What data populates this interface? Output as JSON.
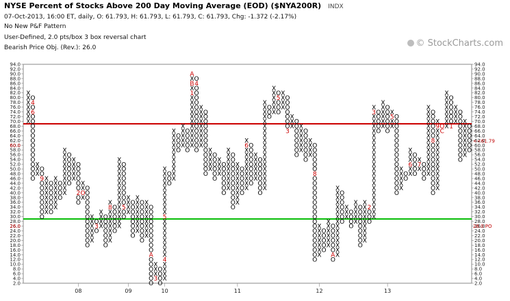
{
  "header": {
    "title": "NYSE Percent of Stocks Above 200 Day Moving Average (EOD) ($NYA200R)",
    "symbol_note": "INDX",
    "info_lines": [
      "07-Oct-2013, 16:00 ET, daily, O: 61.793, H: 61.793, L: 61.793, C: 61.793, Chg: -1.372 (-2.17%)",
      "No New P&F Pattern",
      "User-Defined, 2.0 pts/box 3 box reversal chart",
      "Bearish Price Obj. (Rev.): 26.0"
    ]
  },
  "watermark": {
    "text": "© StockCharts.com",
    "icon": "stockcharts-logo-icon"
  },
  "chart_data": {
    "type": "point-and-figure",
    "box_size": 2.0,
    "reversal": 3,
    "ylim": [
      2,
      94
    ],
    "y_ticks": [
      "94.0",
      "92.0",
      "90.0",
      "88.0",
      "86.0",
      "84.0",
      "82.0",
      "80.0",
      "78.0",
      "76.0",
      "74.0",
      "72.0",
      "70.0",
      "68.0",
      "66.0",
      "64.0",
      "62.0",
      "60.0",
      "58.0",
      "56.0",
      "54.0",
      "52.0",
      "50.0",
      "48.0",
      "46.0",
      "44.0",
      "42.0",
      "40.0",
      "38.0",
      "36.0",
      "34.0",
      "32.0",
      "30.0",
      "28.0",
      "26.0",
      "24.0",
      "22.0",
      "20.0",
      "18.0",
      "16.0",
      "14.0",
      "12.0",
      "10.0",
      "8.0",
      "6.0",
      "4.0",
      "2.0"
    ],
    "x_labels": [
      {
        "label": "08",
        "column": 11
      },
      {
        "label": "09",
        "column": 22
      },
      {
        "label": "10",
        "column": 30
      },
      {
        "label": "11",
        "column": 46
      },
      {
        "label": "12",
        "column": 64
      },
      {
        "label": "13",
        "column": 79
      }
    ],
    "reference_lines": [
      {
        "value": 69,
        "color": "#cc0000",
        "name": "upper reference"
      },
      {
        "value": 29,
        "color": "#00bb00",
        "name": "lower reference"
      }
    ],
    "right_markers": [
      {
        "value": 61.79,
        "text": "<<61.79",
        "color": "#c00000"
      },
      {
        "value": 26.0,
        "text": "26.0 PO",
        "color": "#c00000"
      }
    ],
    "left_markers": [
      {
        "value": 60.0,
        "text": "60.0",
        "color": "#c00000"
      },
      {
        "value": 26.0,
        "text": "26.0",
        "color": "#c00000"
      }
    ],
    "columns": [
      {
        "t": "X",
        "lo": 70,
        "hi": 82
      },
      {
        "t": "O",
        "lo": 46,
        "hi": 80
      },
      {
        "t": "X",
        "lo": 48,
        "hi": 52
      },
      {
        "t": "O",
        "lo": 30,
        "hi": 50
      },
      {
        "t": "X",
        "lo": 32,
        "hi": 46
      },
      {
        "t": "O",
        "lo": 32,
        "hi": 44
      },
      {
        "t": "X",
        "lo": 34,
        "hi": 46
      },
      {
        "t": "O",
        "lo": 38,
        "hi": 44
      },
      {
        "t": "X",
        "lo": 40,
        "hi": 58
      },
      {
        "t": "O",
        "lo": 44,
        "hi": 56
      },
      {
        "t": "X",
        "lo": 46,
        "hi": 54
      },
      {
        "t": "O",
        "lo": 36,
        "hi": 52
      },
      {
        "t": "X",
        "lo": 38,
        "hi": 44
      },
      {
        "t": "O",
        "lo": 18,
        "hi": 42
      },
      {
        "t": "X",
        "lo": 20,
        "hi": 30
      },
      {
        "t": "O",
        "lo": 24,
        "hi": 28
      },
      {
        "t": "X",
        "lo": 26,
        "hi": 32
      },
      {
        "t": "O",
        "lo": 18,
        "hi": 30
      },
      {
        "t": "X",
        "lo": 20,
        "hi": 36
      },
      {
        "t": "O",
        "lo": 24,
        "hi": 34
      },
      {
        "t": "X",
        "lo": 26,
        "hi": 54
      },
      {
        "t": "O",
        "lo": 30,
        "hi": 52
      },
      {
        "t": "X",
        "lo": 32,
        "hi": 38
      },
      {
        "t": "O",
        "lo": 22,
        "hi": 36
      },
      {
        "t": "X",
        "lo": 24,
        "hi": 38
      },
      {
        "t": "O",
        "lo": 20,
        "hi": 36
      },
      {
        "t": "X",
        "lo": 22,
        "hi": 36
      },
      {
        "t": "O",
        "lo": 2,
        "hi": 34
      },
      {
        "t": "X",
        "lo": 4,
        "hi": 10
      },
      {
        "t": "O",
        "lo": 2,
        "hi": 8
      },
      {
        "t": "X",
        "lo": 4,
        "hi": 50
      },
      {
        "t": "O",
        "lo": 44,
        "hi": 48
      },
      {
        "t": "X",
        "lo": 46,
        "hi": 66
      },
      {
        "t": "O",
        "lo": 58,
        "hi": 64
      },
      {
        "t": "X",
        "lo": 60,
        "hi": 68
      },
      {
        "t": "O",
        "lo": 58,
        "hi": 66
      },
      {
        "t": "X",
        "lo": 60,
        "hi": 90
      },
      {
        "t": "O",
        "lo": 58,
        "hi": 88
      },
      {
        "t": "X",
        "lo": 60,
        "hi": 76
      },
      {
        "t": "O",
        "lo": 48,
        "hi": 74
      },
      {
        "t": "X",
        "lo": 50,
        "hi": 58
      },
      {
        "t": "O",
        "lo": 46,
        "hi": 56
      },
      {
        "t": "X",
        "lo": 48,
        "hi": 54
      },
      {
        "t": "O",
        "lo": 40,
        "hi": 52
      },
      {
        "t": "X",
        "lo": 42,
        "hi": 58
      },
      {
        "t": "O",
        "lo": 34,
        "hi": 56
      },
      {
        "t": "X",
        "lo": 36,
        "hi": 52
      },
      {
        "t": "O",
        "lo": 40,
        "hi": 50
      },
      {
        "t": "X",
        "lo": 42,
        "hi": 62
      },
      {
        "t": "O",
        "lo": 44,
        "hi": 60
      },
      {
        "t": "X",
        "lo": 46,
        "hi": 56
      },
      {
        "t": "O",
        "lo": 40,
        "hi": 54
      },
      {
        "t": "X",
        "lo": 42,
        "hi": 78
      },
      {
        "t": "O",
        "lo": 72,
        "hi": 76
      },
      {
        "t": "X",
        "lo": 74,
        "hi": 84
      },
      {
        "t": "O",
        "lo": 74,
        "hi": 82
      },
      {
        "t": "X",
        "lo": 76,
        "hi": 82
      },
      {
        "t": "O",
        "lo": 66,
        "hi": 80
      },
      {
        "t": "X",
        "lo": 68,
        "hi": 72
      },
      {
        "t": "O",
        "lo": 56,
        "hi": 70
      },
      {
        "t": "X",
        "lo": 58,
        "hi": 68
      },
      {
        "t": "O",
        "lo": 54,
        "hi": 66
      },
      {
        "t": "X",
        "lo": 56,
        "hi": 62
      },
      {
        "t": "O",
        "lo": 12,
        "hi": 60
      },
      {
        "t": "X",
        "lo": 14,
        "hi": 26
      },
      {
        "t": "O",
        "lo": 16,
        "hi": 24
      },
      {
        "t": "X",
        "lo": 18,
        "hi": 28
      },
      {
        "t": "O",
        "lo": 12,
        "hi": 26
      },
      {
        "t": "X",
        "lo": 14,
        "hi": 42
      },
      {
        "t": "O",
        "lo": 28,
        "hi": 40
      },
      {
        "t": "X",
        "lo": 30,
        "hi": 34
      },
      {
        "t": "O",
        "lo": 26,
        "hi": 32
      },
      {
        "t": "X",
        "lo": 28,
        "hi": 36
      },
      {
        "t": "O",
        "lo": 18,
        "hi": 34
      },
      {
        "t": "X",
        "lo": 20,
        "hi": 36
      },
      {
        "t": "O",
        "lo": 28,
        "hi": 34
      },
      {
        "t": "X",
        "lo": 30,
        "hi": 76
      },
      {
        "t": "O",
        "lo": 66,
        "hi": 74
      },
      {
        "t": "X",
        "lo": 68,
        "hi": 78
      },
      {
        "t": "O",
        "lo": 66,
        "hi": 76
      },
      {
        "t": "X",
        "lo": 68,
        "hi": 74
      },
      {
        "t": "O",
        "lo": 40,
        "hi": 72
      },
      {
        "t": "X",
        "lo": 42,
        "hi": 50
      },
      {
        "t": "O",
        "lo": 46,
        "hi": 48
      },
      {
        "t": "X",
        "lo": 48,
        "hi": 58
      },
      {
        "t": "O",
        "lo": 48,
        "hi": 56
      },
      {
        "t": "X",
        "lo": 50,
        "hi": 54
      },
      {
        "t": "O",
        "lo": 46,
        "hi": 52
      },
      {
        "t": "X",
        "lo": 48,
        "hi": 76
      },
      {
        "t": "O",
        "lo": 40,
        "hi": 74
      },
      {
        "t": "X",
        "lo": 42,
        "hi": 70
      },
      {
        "t": "O",
        "lo": 66,
        "hi": 68
      },
      {
        "t": "X",
        "lo": 68,
        "hi": 82
      },
      {
        "t": "O",
        "lo": 68,
        "hi": 80
      },
      {
        "t": "X",
        "lo": 70,
        "hi": 76
      },
      {
        "t": "O",
        "lo": 54,
        "hi": 74
      },
      {
        "t": "X",
        "lo": 56,
        "hi": 70
      },
      {
        "t": "O",
        "lo": 58,
        "hi": 68
      }
    ],
    "month_marks": [
      {
        "col": 1,
        "val": 78,
        "text": "4"
      },
      {
        "col": 1,
        "val": 74,
        "text": "6"
      },
      {
        "col": 3,
        "val": 46,
        "text": "9"
      },
      {
        "col": 5,
        "val": 46,
        "text": "9"
      },
      {
        "col": 7,
        "val": 50,
        "text": "8"
      },
      {
        "col": 11,
        "val": 40,
        "text": "2"
      },
      {
        "col": 12,
        "val": 40,
        "text": "O"
      },
      {
        "col": 11,
        "val": 28,
        "text": "1"
      },
      {
        "col": 15,
        "val": 42,
        "text": "5"
      },
      {
        "col": 15,
        "val": 26,
        "text": "3"
      },
      {
        "col": 18,
        "val": 34,
        "text": "8"
      },
      {
        "col": 19,
        "val": 36,
        "text": "9"
      },
      {
        "col": 21,
        "val": 34,
        "text": "5"
      },
      {
        "col": 21,
        "val": 28,
        "text": "8"
      },
      {
        "col": 27,
        "val": 14,
        "text": "A"
      },
      {
        "col": 28,
        "val": 4,
        "text": "3"
      },
      {
        "col": 30,
        "val": 12,
        "text": "4"
      },
      {
        "col": 30,
        "val": 30,
        "text": "5"
      },
      {
        "col": 31,
        "val": 66,
        "text": "7"
      },
      {
        "col": 36,
        "val": 90,
        "text": "A"
      },
      {
        "col": 36,
        "val": 86,
        "text": "B"
      },
      {
        "col": 37,
        "val": 86,
        "text": "4"
      },
      {
        "col": 36,
        "val": 82,
        "text": "1"
      },
      {
        "col": 38,
        "val": 78,
        "text": "3"
      },
      {
        "col": 42,
        "val": 56,
        "text": "6"
      },
      {
        "col": 43,
        "val": 56,
        "text": "O"
      },
      {
        "col": 48,
        "val": 60,
        "text": "6"
      },
      {
        "col": 50,
        "val": 82,
        "text": "B"
      },
      {
        "col": 53,
        "val": 84,
        "text": "2"
      },
      {
        "col": 53,
        "val": 78,
        "text": "9"
      },
      {
        "col": 55,
        "val": 80,
        "text": "5"
      },
      {
        "col": 55,
        "val": 72,
        "text": "C"
      },
      {
        "col": 56,
        "val": 66,
        "text": "8"
      },
      {
        "col": 57,
        "val": 66,
        "text": "3"
      },
      {
        "col": 63,
        "val": 48,
        "text": "8"
      },
      {
        "col": 67,
        "val": 14,
        "text": "A"
      },
      {
        "col": 70,
        "val": 40,
        "text": "1"
      },
      {
        "col": 75,
        "val": 34,
        "text": "2"
      },
      {
        "col": 76,
        "val": 74,
        "text": "3"
      },
      {
        "col": 77,
        "val": 76,
        "text": "4"
      },
      {
        "col": 80,
        "val": 72,
        "text": "5"
      },
      {
        "col": 84,
        "val": 52,
        "text": "6"
      },
      {
        "col": 86,
        "val": 52,
        "text": "7"
      },
      {
        "col": 89,
        "val": 62,
        "text": "8"
      },
      {
        "col": 90,
        "val": 68,
        "text": "9"
      },
      {
        "col": 91,
        "val": 68,
        "text": "O"
      },
      {
        "col": 91,
        "val": 66,
        "text": "C"
      },
      {
        "col": 93,
        "val": 68,
        "text": "1"
      },
      {
        "col": 94,
        "val": 80,
        "text": "4"
      },
      {
        "col": 95,
        "val": 80,
        "text": "5"
      },
      {
        "col": 96,
        "val": 72,
        "text": "6"
      },
      {
        "col": 98,
        "val": 64,
        "text": "A"
      },
      {
        "col": 98,
        "val": 62,
        "text": "O"
      },
      {
        "col": 97,
        "val": 56,
        "text": "9"
      }
    ]
  }
}
